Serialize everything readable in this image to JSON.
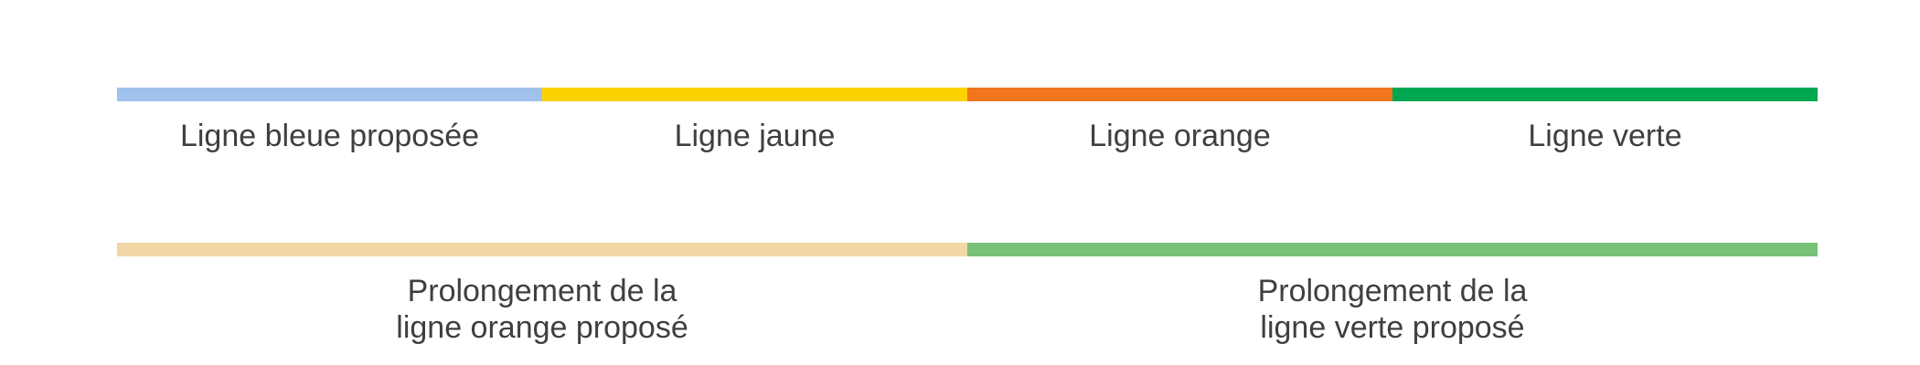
{
  "legend": {
    "row1": [
      {
        "label": "Ligne bleue proposée",
        "color": "#9fc1ec"
      },
      {
        "label": "Ligne jaune",
        "color": "#fed201"
      },
      {
        "label": "Ligne orange",
        "color": "#f2761d"
      },
      {
        "label": "Ligne verte",
        "color": "#00a650"
      }
    ],
    "row2": [
      {
        "label": "Prolongement de la\nligne orange proposé",
        "color": "#f2d7a6"
      },
      {
        "label": "Prolongement de la\nligne verte proposé",
        "color": "#77c277"
      }
    ]
  }
}
